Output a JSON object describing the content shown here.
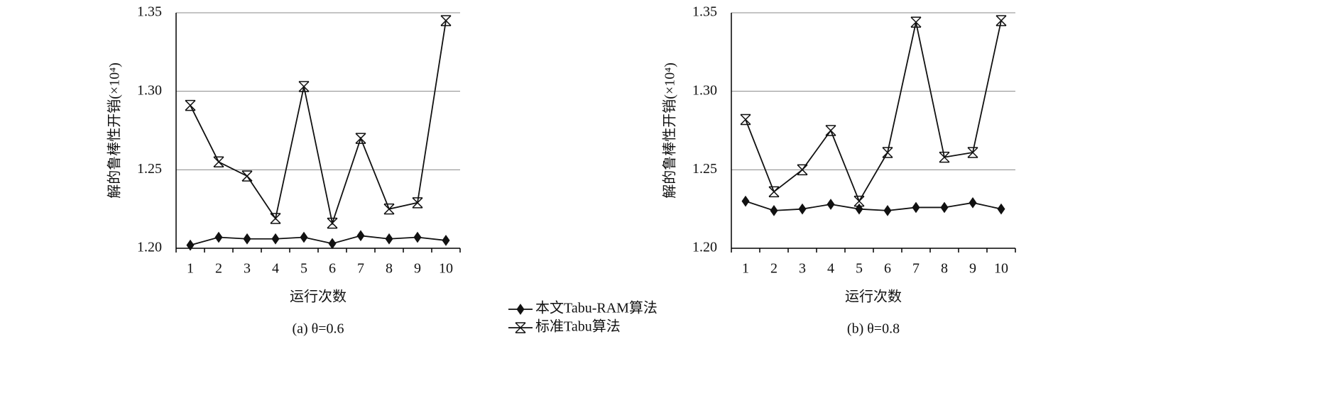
{
  "chart_data": [
    {
      "type": "line",
      "categories": [
        "1",
        "2",
        "3",
        "4",
        "5",
        "6",
        "7",
        "8",
        "9",
        "10"
      ],
      "series": [
        {
          "color": "#111111",
          "marker": "diamond",
          "values": [
            1.202,
            1.207,
            1.206,
            1.206,
            1.207,
            1.203,
            1.208,
            1.206,
            1.207,
            1.205
          ]
        },
        {
          "color": "#111111",
          "marker": "asterisk",
          "values": [
            1.291,
            1.255,
            1.246,
            1.219,
            1.303,
            1.216,
            1.27,
            1.225,
            1.229,
            1.345
          ]
        }
      ],
      "ylim": [
        1.2,
        1.35
      ],
      "yticks": [
        {
          "value": 1.2,
          "label": "1.20"
        },
        1.25,
        {
          "value": 1.3,
          "label": "1.30"
        },
        1.35
      ],
      "grid": true,
      "ylabel": "解的鲁棒性开销(×10⁴)",
      "xlabel": "运行次数",
      "caption": "(a) θ=0.6"
    },
    {
      "type": "line",
      "categories": [
        "1",
        "2",
        "3",
        "4",
        "5",
        "6",
        "7",
        "8",
        "9",
        "10"
      ],
      "series": [
        {
          "color": "#111111",
          "marker": "diamond",
          "values": [
            1.23,
            1.224,
            1.225,
            1.228,
            1.225,
            1.224,
            1.226,
            1.226,
            1.229,
            1.225
          ]
        },
        {
          "color": "#111111",
          "marker": "asterisk",
          "values": [
            1.282,
            1.236,
            1.25,
            1.275,
            1.23,
            1.261,
            1.344,
            1.258,
            1.261,
            1.345
          ]
        }
      ],
      "ylim": [
        1.2,
        1.35
      ],
      "yticks": [
        {
          "value": 1.2,
          "label": "1.20"
        },
        1.25,
        {
          "value": 1.3,
          "label": "1.30"
        },
        1.35
      ],
      "grid": true,
      "ylabel": "解的鲁棒性开销(×10⁴)",
      "xlabel": "运行次数",
      "caption": "(b) θ=0.8"
    }
  ],
  "legend": [
    {
      "name": "本文Tabu-RAM算法",
      "series": 0
    },
    {
      "name": "标准Tabu算法",
      "series": 1
    }
  ]
}
